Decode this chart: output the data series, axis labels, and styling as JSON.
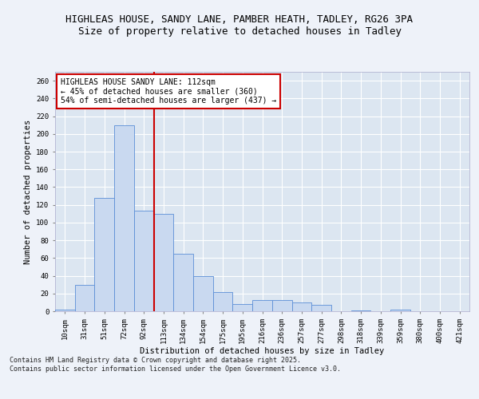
{
  "title_line1": "HIGHLEAS HOUSE, SANDY LANE, PAMBER HEATH, TADLEY, RG26 3PA",
  "title_line2": "Size of property relative to detached houses in Tadley",
  "xlabel": "Distribution of detached houses by size in Tadley",
  "ylabel": "Number of detached properties",
  "bins": [
    "10sqm",
    "31sqm",
    "51sqm",
    "72sqm",
    "92sqm",
    "113sqm",
    "134sqm",
    "154sqm",
    "175sqm",
    "195sqm",
    "216sqm",
    "236sqm",
    "257sqm",
    "277sqm",
    "298sqm",
    "318sqm",
    "339sqm",
    "359sqm",
    "380sqm",
    "400sqm",
    "421sqm"
  ],
  "bar_heights": [
    2,
    30,
    128,
    210,
    113,
    110,
    65,
    40,
    22,
    8,
    13,
    13,
    10,
    7,
    0,
    1,
    0,
    2,
    0,
    0,
    0
  ],
  "bar_color": "#c9d9f0",
  "bar_edge_color": "#5b8ed6",
  "vline_x": 4.5,
  "vline_color": "#cc0000",
  "annotation_title": "HIGHLEAS HOUSE SANDY LANE: 112sqm",
  "annotation_line2": "← 45% of detached houses are smaller (360)",
  "annotation_line3": "54% of semi-detached houses are larger (437) →",
  "annotation_box_color": "#ffffff",
  "annotation_box_edge": "#cc0000",
  "ylim": [
    0,
    270
  ],
  "yticks": [
    0,
    20,
    40,
    60,
    80,
    100,
    120,
    140,
    160,
    180,
    200,
    220,
    240,
    260
  ],
  "footer": "Contains HM Land Registry data © Crown copyright and database right 2025.\nContains public sector information licensed under the Open Government Licence v3.0.",
  "fig_bg_color": "#eef2f9",
  "plot_bg_color": "#dce6f1",
  "title_fontsize": 9,
  "subtitle_fontsize": 9,
  "tick_fontsize": 6.5,
  "label_fontsize": 7.5,
  "annotation_fontsize": 7,
  "footer_fontsize": 6
}
